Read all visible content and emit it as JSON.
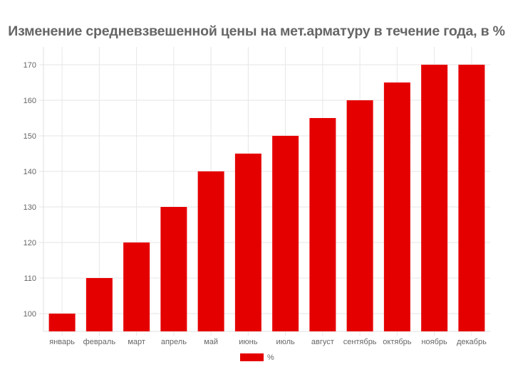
{
  "chart_data": {
    "type": "bar",
    "title": "Изменение средневзвешенной цены на мет.арматуру в течение года, в %",
    "categories": [
      "январь",
      "февраль",
      "март",
      "апрель",
      "май",
      "июнь",
      "июль",
      "август",
      "сентябрь",
      "октябрь",
      "ноябрь",
      "декабрь"
    ],
    "series": [
      {
        "name": "%",
        "values": [
          100,
          110,
          120,
          130,
          140,
          145,
          150,
          155,
          160,
          165,
          170,
          170
        ],
        "color": "#e50000"
      }
    ],
    "xlabel": "",
    "ylabel": "",
    "ylim": [
      95,
      175
    ],
    "yticks": [
      100,
      110,
      120,
      130,
      140,
      150,
      160,
      170
    ],
    "grid": true,
    "legend": "bottom"
  }
}
